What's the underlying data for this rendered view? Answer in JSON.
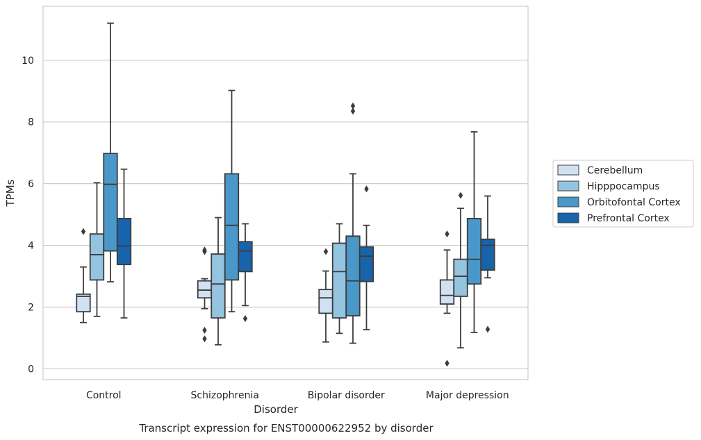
{
  "chart_data": {
    "type": "box",
    "caption": "Transcript expression for ENST00000622952 by disorder",
    "xlabel": "Disorder",
    "ylabel": "TPMs",
    "ylim": [
      -0.35,
      11.75
    ],
    "yticks": [
      0,
      2,
      4,
      6,
      8,
      10
    ],
    "grid": "horizontal",
    "legend_position": "right",
    "categories": [
      "Control",
      "Schizophrenia",
      "Bipolar disorder",
      "Major depression"
    ],
    "series": [
      {
        "name": "Cerebellum",
        "color": "#d0e1f2",
        "boxes": [
          {
            "whisker_low": 1.5,
            "q1": 1.85,
            "median": 2.35,
            "q3": 2.42,
            "whisker_high": 3.3,
            "outliers": [
              4.45
            ]
          },
          {
            "whisker_low": 1.95,
            "q1": 2.3,
            "median": 2.55,
            "q3": 2.85,
            "whisker_high": 2.92,
            "outliers": [
              3.8,
              3.85,
              1.25,
              0.97
            ]
          },
          {
            "whisker_low": 0.87,
            "q1": 1.8,
            "median": 2.3,
            "q3": 2.57,
            "whisker_high": 3.17,
            "outliers": [
              3.8
            ]
          },
          {
            "whisker_low": 1.8,
            "q1": 2.1,
            "median": 2.38,
            "q3": 2.88,
            "whisker_high": 3.85,
            "outliers": [
              4.37,
              0.18
            ]
          }
        ]
      },
      {
        "name": "Hipppocampus",
        "color": "#94c4df",
        "boxes": [
          {
            "whisker_low": 1.7,
            "q1": 2.88,
            "median": 3.7,
            "q3": 4.37,
            "whisker_high": 6.03,
            "outliers": []
          },
          {
            "whisker_low": 0.78,
            "q1": 1.65,
            "median": 2.75,
            "q3": 3.72,
            "whisker_high": 4.9,
            "outliers": []
          },
          {
            "whisker_low": 1.15,
            "q1": 1.65,
            "median": 3.15,
            "q3": 4.07,
            "whisker_high": 4.7,
            "outliers": []
          },
          {
            "whisker_low": 0.68,
            "q1": 2.35,
            "median": 3.0,
            "q3": 3.55,
            "whisker_high": 5.2,
            "outliers": [
              5.62
            ]
          }
        ]
      },
      {
        "name": "Orbitofontal Cortex",
        "color": "#4a98c9",
        "boxes": [
          {
            "whisker_low": 2.82,
            "q1": 3.82,
            "median": 5.98,
            "q3": 6.98,
            "whisker_high": 11.2,
            "outliers": []
          },
          {
            "whisker_low": 1.85,
            "q1": 2.88,
            "median": 4.65,
            "q3": 6.32,
            "whisker_high": 9.02,
            "outliers": []
          },
          {
            "whisker_low": 0.83,
            "q1": 1.72,
            "median": 2.85,
            "q3": 4.3,
            "whisker_high": 6.32,
            "outliers": [
              8.35,
              8.52
            ]
          },
          {
            "whisker_low": 1.18,
            "q1": 2.75,
            "median": 3.55,
            "q3": 4.87,
            "whisker_high": 7.68,
            "outliers": []
          }
        ]
      },
      {
        "name": "Prefrontal Cortex",
        "color": "#1764ab",
        "boxes": [
          {
            "whisker_low": 1.65,
            "q1": 3.38,
            "median": 3.98,
            "q3": 4.87,
            "whisker_high": 6.47,
            "outliers": []
          },
          {
            "whisker_low": 2.05,
            "q1": 3.15,
            "median": 3.82,
            "q3": 4.12,
            "whisker_high": 4.7,
            "outliers": [
              1.63
            ]
          },
          {
            "whisker_low": 1.27,
            "q1": 2.83,
            "median": 3.65,
            "q3": 3.95,
            "whisker_high": 4.65,
            "outliers": [
              5.83
            ]
          },
          {
            "whisker_low": 2.95,
            "q1": 3.2,
            "median": 4.0,
            "q3": 4.2,
            "whisker_high": 5.6,
            "outliers": [
              1.28
            ]
          }
        ]
      }
    ]
  }
}
